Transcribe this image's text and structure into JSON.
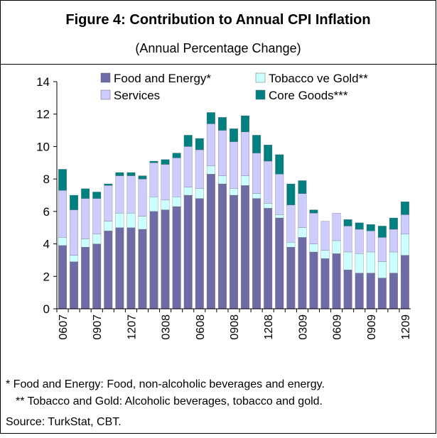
{
  "chart_data": {
    "type": "stacked-bar",
    "title": "Figure 4: Contribution to Annual CPI Inflation",
    "subtitle": "(Annual Percentage Change)",
    "categories": [
      "0607",
      null,
      null,
      "0907",
      null,
      null,
      "1207",
      null,
      null,
      "0308",
      null,
      null,
      "0608",
      null,
      null,
      "0908",
      null,
      null,
      "1208",
      null,
      null,
      "0309",
      null,
      null,
      "0609",
      null,
      null,
      "0909",
      null,
      null,
      "1209"
    ],
    "series": [
      {
        "name": "Food and Energy*",
        "color": "#6e6ca6",
        "values": [
          3.9,
          2.9,
          3.8,
          4.0,
          4.8,
          5.0,
          5.0,
          4.9,
          6.0,
          6.1,
          6.3,
          7.0,
          6.8,
          8.3,
          7.7,
          7.0,
          7.6,
          6.8,
          6.2,
          5.6,
          3.8,
          4.4,
          3.5,
          3.1,
          3.4,
          2.4,
          2.2,
          2.2,
          1.9,
          2.2,
          3.3
        ]
      },
      {
        "name": "Tobacco ve Gold**",
        "color": "#ccffff",
        "values": [
          0.5,
          0.4,
          0.5,
          0.6,
          0.6,
          0.9,
          0.9,
          0.8,
          0.9,
          0.6,
          0.6,
          0.5,
          0.6,
          0.5,
          0.5,
          0.4,
          0.6,
          0.3,
          0.3,
          0.2,
          0.3,
          0.6,
          0.5,
          0.5,
          0.8,
          1.1,
          1.2,
          1.3,
          1.0,
          1.3,
          1.3
        ]
      },
      {
        "name": "Services",
        "color": "#ccccff",
        "values": [
          2.9,
          2.8,
          2.5,
          2.2,
          2.2,
          2.3,
          2.3,
          2.3,
          2.1,
          2.2,
          2.4,
          2.5,
          2.4,
          2.6,
          2.8,
          2.9,
          2.7,
          2.5,
          2.6,
          2.5,
          2.3,
          2.1,
          1.9,
          1.8,
          1.7,
          1.6,
          1.5,
          1.3,
          1.5,
          1.4,
          1.2
        ]
      },
      {
        "name": "Core Goods***",
        "color": "#008080",
        "values": [
          1.3,
          0.9,
          0.6,
          0.4,
          0.1,
          0.2,
          0.2,
          0.2,
          0.1,
          0.3,
          0.3,
          0.7,
          0.7,
          0.7,
          0.8,
          0.8,
          1.0,
          1.1,
          1.0,
          1.2,
          1.3,
          0.8,
          0.2,
          0.0,
          0.0,
          0.4,
          0.4,
          0.4,
          0.7,
          0.7,
          0.8
        ]
      }
    ],
    "ylim": [
      0,
      14
    ],
    "yticks": [
      0,
      2,
      4,
      6,
      8,
      10,
      12,
      14
    ],
    "notes": [
      "* Food and Energy: Food, non-alcoholic beverages and energy.",
      "** Tobacco and Gold: Alcoholic beverages, tobacco and gold."
    ],
    "source": "Source: TurkStat, CBT."
  }
}
